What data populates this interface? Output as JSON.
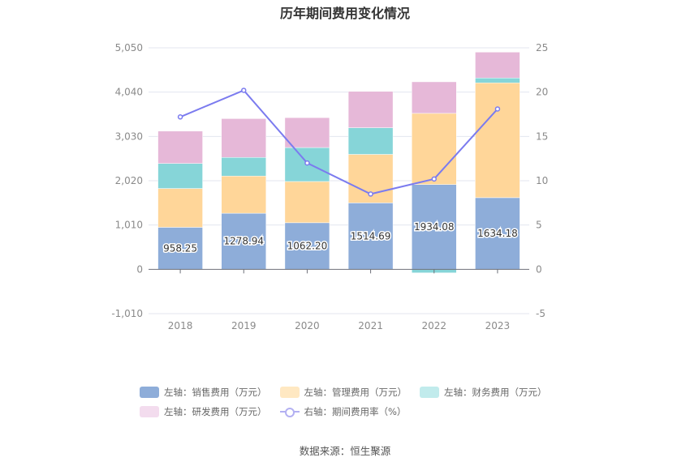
{
  "chart_data": {
    "type": "bar",
    "stacked": true,
    "title": "历年期间费用变化情况",
    "categories": [
      "2018",
      "2019",
      "2020",
      "2021",
      "2022",
      "2023"
    ],
    "series": [
      {
        "name": "左轴：销售费用（万元）",
        "axis": "left",
        "type": "bar",
        "color": "#8eadd9",
        "values": [
          958.25,
          1278.94,
          1062.2,
          1514.69,
          1934.08,
          1634.18
        ],
        "labels_shown": true
      },
      {
        "name": "左轴：管理费用（万元）",
        "axis": "left",
        "type": "bar",
        "color": "#ffd699",
        "values": [
          885,
          848,
          940,
          1106,
          1622,
          2617
        ]
      },
      {
        "name": "左轴：财务费用（万元）",
        "axis": "left",
        "type": "bar",
        "color": "#86d5d8",
        "values": [
          571,
          424,
          774,
          608,
          -80,
          111
        ]
      },
      {
        "name": "左轴：研发费用（万元）",
        "axis": "left",
        "type": "bar",
        "color": "#e6b8d8",
        "values": [
          737,
          885,
          682,
          829,
          719,
          590
        ]
      },
      {
        "name": "右轴：期间费用率（%）",
        "axis": "right",
        "type": "line",
        "color": "#7b7bef",
        "values": [
          17.2,
          20.2,
          12.0,
          8.5,
          10.2,
          18.1
        ]
      }
    ],
    "left_axis": {
      "ylim": [
        -1010,
        5050
      ],
      "ticks": [
        "-1,010",
        "0",
        "1,010",
        "2,020",
        "3,030",
        "4,040",
        "5,050"
      ],
      "tick_values": [
        -1010,
        0,
        1010,
        2020,
        3030,
        4040,
        5050
      ]
    },
    "right_axis": {
      "ylim": [
        -5,
        25
      ],
      "ticks": [
        "-5",
        "0",
        "5",
        "10",
        "15",
        "20",
        "25"
      ],
      "tick_values": [
        -5,
        0,
        5,
        10,
        15,
        20,
        25
      ]
    },
    "grid": true,
    "legend_position": "bottom",
    "xlabel": "",
    "ylabel": ""
  },
  "legend": {
    "items": [
      {
        "label": "左轴：销售费用（万元）",
        "color": "#8eadd9",
        "kind": "box"
      },
      {
        "label": "左轴：管理费用（万元）",
        "color": "#ffe8c2",
        "kind": "box"
      },
      {
        "label": "左轴：财务费用（万元）",
        "color": "#c1ebec",
        "kind": "box"
      },
      {
        "label": "左轴：研发费用（万元）",
        "color": "#f3dcee",
        "kind": "box"
      },
      {
        "label": "右轴：期间费用率（%）",
        "color": "#b3b0f2",
        "kind": "line"
      }
    ]
  },
  "source": "数据来源：恒生聚源"
}
